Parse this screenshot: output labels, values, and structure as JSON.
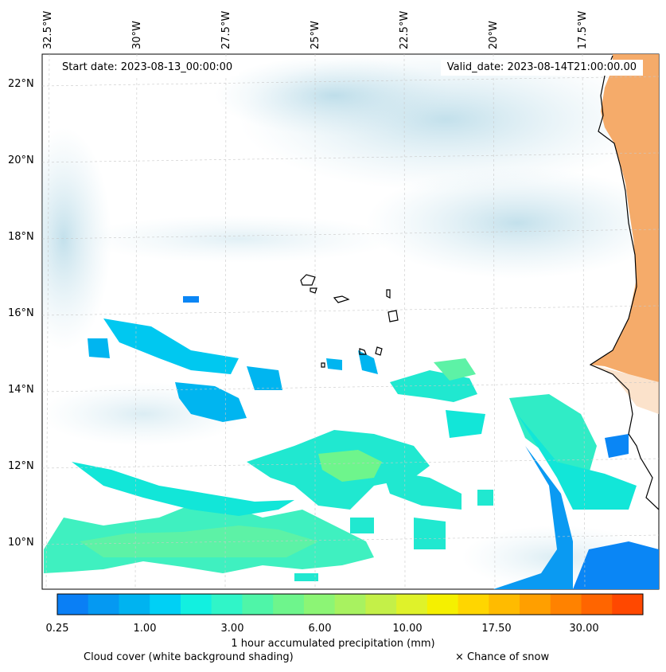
{
  "map": {
    "start_date": "Start date: 2023-08-13_00:00:00",
    "valid_date": "Valid_date: 2023-08-14T21:00:00.00",
    "lon_labels": [
      "32.5°W",
      "30°W",
      "27.5°W",
      "25°W",
      "22.5°W",
      "20°W",
      "17.5°W"
    ],
    "lat_labels": [
      "22°N",
      "20°N",
      "18°N",
      "16°N",
      "14°N",
      "12°N",
      "10°N"
    ]
  },
  "colorbar": {
    "title": "1 hour accumulated precipitation (mm)",
    "tick_labels": [
      "0.25",
      "1.00",
      "3.00",
      "6.00",
      "10.00",
      "17.50",
      "30.00"
    ],
    "colors": [
      "#0a7ff5",
      "#0599f2",
      "#00b3f0",
      "#00d0f5",
      "#12f0e0",
      "#30f5c8",
      "#4ff5a8",
      "#6ef58c",
      "#8cf575",
      "#a8f260",
      "#c4f048",
      "#dff22a",
      "#f5f000",
      "#ffd600",
      "#ffbb00",
      "#ff9f00",
      "#ff8200",
      "#ff6500",
      "#ff4800"
    ]
  },
  "legend": {
    "cloud_cover": "Cloud cover (white background shading)",
    "snow": "× Chance of snow"
  }
}
